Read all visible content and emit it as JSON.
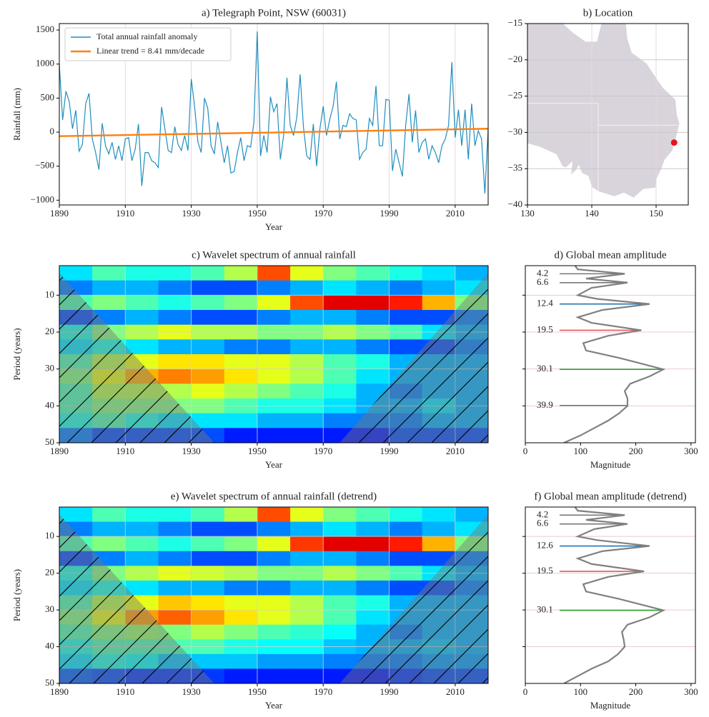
{
  "chart_data": [
    {
      "type": "line",
      "title": "a) Telegraph Point, NSW (60031)",
      "x_label": "Year",
      "y_label": "Rainfall (mm)",
      "x": [
        1890,
        1891,
        1892,
        1893,
        1894,
        1895,
        1896,
        1897,
        1898,
        1899,
        1900,
        1901,
        1902,
        1903,
        1904,
        1905,
        1906,
        1907,
        1908,
        1909,
        1910,
        1911,
        1912,
        1913,
        1914,
        1915,
        1916,
        1917,
        1918,
        1919,
        1920,
        1921,
        1922,
        1923,
        1924,
        1925,
        1926,
        1927,
        1928,
        1929,
        1930,
        1931,
        1932,
        1933,
        1934,
        1935,
        1936,
        1937,
        1938,
        1939,
        1940,
        1941,
        1942,
        1943,
        1944,
        1945,
        1946,
        1947,
        1948,
        1949,
        1950,
        1951,
        1952,
        1953,
        1954,
        1955,
        1956,
        1957,
        1958,
        1959,
        1960,
        1961,
        1962,
        1963,
        1964,
        1965,
        1966,
        1967,
        1968,
        1969,
        1970,
        1971,
        1972,
        1973,
        1974,
        1975,
        1976,
        1977,
        1978,
        1979,
        1980,
        1981,
        1982,
        1983,
        1984,
        1985,
        1986,
        1987,
        1988,
        1989,
        1990,
        1991,
        1992,
        1993,
        1994,
        1995,
        1996,
        1997,
        1998,
        1999,
        2000,
        2001,
        2002,
        2003,
        2004,
        2005,
        2006,
        2007,
        2008,
        2009,
        2010,
        2011,
        2012,
        2013,
        2014,
        2015,
        2016,
        2017,
        2018,
        2019,
        2020
      ],
      "series": [
        {
          "name": "Total annual rainfall anomaly",
          "color": "#1f8ebf",
          "values": [
            1000,
            180,
            600,
            450,
            50,
            320,
            -280,
            -180,
            420,
            570,
            -100,
            -300,
            -550,
            130,
            -200,
            -320,
            -150,
            -400,
            -200,
            -420,
            -100,
            -80,
            -420,
            -250,
            120,
            -790,
            -300,
            -300,
            -420,
            -450,
            -520,
            370,
            50,
            -270,
            -300,
            80,
            -180,
            -270,
            -50,
            -270,
            780,
            380,
            -140,
            -300,
            500,
            350,
            -200,
            -320,
            150,
            -150,
            -450,
            -200,
            -600,
            -580,
            -300,
            -80,
            -420,
            -200,
            -220,
            150,
            1480,
            -350,
            -50,
            -300,
            520,
            300,
            420,
            -400,
            -50,
            800,
            100,
            -50,
            220,
            850,
            80,
            -350,
            -400,
            120,
            -500,
            50,
            380,
            -50,
            190,
            380,
            740,
            -100,
            100,
            80,
            270,
            200,
            180,
            -400,
            -300,
            -250,
            200,
            100,
            680,
            -200,
            -200,
            480,
            470,
            -570,
            -250,
            -450,
            -650,
            100,
            560,
            -150,
            320,
            -300,
            -150,
            -100,
            -400,
            -200,
            -300,
            -450,
            -200,
            -100,
            100,
            1030,
            -80,
            330,
            -200,
            330,
            -400,
            420,
            -200,
            20,
            -100,
            -900,
            50
          ]
        },
        {
          "name": "Linear trend = 8.41 mm/decade",
          "color": "#ff7f0e",
          "x": [
            1890,
            2020
          ],
          "values": [
            -60,
            50
          ]
        }
      ],
      "xlim": [
        1890,
        2020
      ],
      "ylim": [
        -1070,
        1595
      ],
      "xticks": [
        1890,
        1910,
        1930,
        1950,
        1970,
        1990,
        2010
      ],
      "yticks": [
        {
          "value": -1000,
          "label": "−1000"
        },
        {
          "value": -500,
          "label": "−500"
        },
        0,
        500,
        1000,
        1500
      ],
      "grid": "x",
      "legend": "upper left"
    },
    {
      "type": "map",
      "title": "b) Location",
      "points": {
        "x": [
          152.8
        ],
        "y": [
          -31.4
        ]
      },
      "color": "#e8141c",
      "xlim": [
        130,
        155
      ],
      "ylim": [
        -40,
        -15
      ],
      "xticks": [
        130,
        140,
        150
      ],
      "yticks": [
        {
          "value": -15,
          "label": "−15"
        },
        {
          "value": -20,
          "label": "−20"
        },
        {
          "value": -25,
          "label": "−25"
        },
        {
          "value": -30,
          "label": "−30"
        },
        {
          "value": -35,
          "label": "−35"
        },
        {
          "value": -40,
          "label": "−40"
        }
      ],
      "grid": true
    },
    {
      "type": "heatmap",
      "title": "c) Wavelet spectrum of annual rainfall",
      "x_label": "Year",
      "y_label": "Period (years)",
      "x": [
        1895,
        1905,
        1915,
        1925,
        1935,
        1945,
        1955,
        1965,
        1975,
        1985,
        1995,
        2005,
        2015
      ],
      "y": [
        4,
        8,
        12,
        16,
        20,
        24,
        28,
        32,
        36,
        40,
        44,
        48
      ],
      "z": [
        [
          0.35,
          0.45,
          0.4,
          0.4,
          0.45,
          0.55,
          0.8,
          0.6,
          0.5,
          0.45,
          0.4,
          0.35,
          0.3
        ],
        [
          0.25,
          0.3,
          0.3,
          0.25,
          0.2,
          0.2,
          0.25,
          0.3,
          0.35,
          0.3,
          0.25,
          0.3,
          0.35
        ],
        [
          0.45,
          0.5,
          0.45,
          0.4,
          0.45,
          0.5,
          0.6,
          0.8,
          0.9,
          0.9,
          0.85,
          0.7,
          0.5
        ],
        [
          0.2,
          0.25,
          0.3,
          0.25,
          0.2,
          0.2,
          0.25,
          0.3,
          0.3,
          0.25,
          0.2,
          0.2,
          0.25
        ],
        [
          0.4,
          0.5,
          0.55,
          0.6,
          0.55,
          0.55,
          0.5,
          0.5,
          0.55,
          0.5,
          0.45,
          0.35,
          0.3
        ],
        [
          0.35,
          0.4,
          0.35,
          0.3,
          0.3,
          0.25,
          0.25,
          0.3,
          0.3,
          0.25,
          0.2,
          0.2,
          0.25
        ],
        [
          0.45,
          0.55,
          0.6,
          0.65,
          0.65,
          0.6,
          0.6,
          0.55,
          0.45,
          0.4,
          0.3,
          0.3,
          0.3
        ],
        [
          0.5,
          0.6,
          0.7,
          0.75,
          0.72,
          0.65,
          0.6,
          0.55,
          0.45,
          0.35,
          0.3,
          0.3,
          0.3
        ],
        [
          0.45,
          0.55,
          0.55,
          0.55,
          0.6,
          0.55,
          0.5,
          0.45,
          0.4,
          0.3,
          0.25,
          0.3,
          0.3
        ],
        [
          0.45,
          0.5,
          0.5,
          0.5,
          0.5,
          0.45,
          0.4,
          0.4,
          0.35,
          0.3,
          0.3,
          0.35,
          0.3
        ],
        [
          0.4,
          0.45,
          0.4,
          0.35,
          0.35,
          0.35,
          0.3,
          0.3,
          0.25,
          0.25,
          0.25,
          0.3,
          0.3
        ],
        [
          0.25,
          0.2,
          0.2,
          0.2,
          0.2,
          0.15,
          0.15,
          0.15,
          0.15,
          0.15,
          0.2,
          0.2,
          0.2
        ]
      ],
      "colormap": "jet",
      "xlim": [
        1890,
        2020
      ],
      "ylim": [
        2,
        50
      ],
      "y_inverted": true,
      "xticks": [
        1890,
        1910,
        1930,
        1950,
        1970,
        1990,
        2010
      ],
      "yticks": [
        10,
        20,
        30,
        40,
        50
      ],
      "cone_of_influence": {
        "x": [
          1890,
          1937,
          1975,
          2020
        ],
        "y": [
          4,
          50,
          50,
          4
        ]
      },
      "grid": true
    },
    {
      "type": "profile",
      "title": "d) Global mean amplitude",
      "x_label": "Magnitude",
      "y": [
        2,
        3,
        4.2,
        5.5,
        6.6,
        8,
        10,
        11,
        12.4,
        14,
        16,
        17.5,
        19.5,
        21,
        23,
        25,
        27,
        30.1,
        32,
        34,
        36,
        38,
        40,
        42,
        44,
        46,
        48,
        50
      ],
      "values": [
        90,
        95,
        180,
        110,
        185,
        120,
        95,
        130,
        225,
        140,
        95,
        120,
        210,
        150,
        105,
        110,
        170,
        250,
        225,
        190,
        180,
        185,
        185,
        170,
        150,
        125,
        100,
        70
      ],
      "color": "#808080",
      "xlim": [
        0,
        308
      ],
      "ylim": [
        2,
        50
      ],
      "y_inverted": true,
      "xticks": [
        0,
        100,
        200,
        300
      ],
      "yticks": [
        10,
        20,
        30,
        40
      ],
      "peaks": [
        {
          "period": 4.2,
          "magnitude": 180,
          "color": "#777777"
        },
        {
          "period": 6.6,
          "magnitude": 185,
          "color": "#777777"
        },
        {
          "period": 12.4,
          "magnitude": 225,
          "color": "#1f77b4"
        },
        {
          "period": 19.5,
          "magnitude": 210,
          "color": "#e8555f"
        },
        {
          "period": 30.1,
          "magnitude": 250,
          "color": "#2ca02c"
        },
        {
          "period": 39.9,
          "magnitude": 185,
          "color": "#777777"
        }
      ]
    },
    {
      "type": "heatmap",
      "title": "e) Wavelet spectrum of annual rainfall (detrend)",
      "x_label": "Year",
      "y_label": "Period (years)",
      "x": [
        1895,
        1905,
        1915,
        1925,
        1935,
        1945,
        1955,
        1965,
        1975,
        1985,
        1995,
        2005,
        2015
      ],
      "y": [
        4,
        8,
        12,
        16,
        20,
        24,
        28,
        32,
        36,
        40,
        44,
        48
      ],
      "z": [
        [
          0.35,
          0.45,
          0.4,
          0.4,
          0.45,
          0.55,
          0.8,
          0.6,
          0.5,
          0.45,
          0.4,
          0.35,
          0.3
        ],
        [
          0.25,
          0.3,
          0.3,
          0.25,
          0.2,
          0.2,
          0.25,
          0.3,
          0.35,
          0.3,
          0.25,
          0.3,
          0.35
        ],
        [
          0.45,
          0.5,
          0.45,
          0.4,
          0.45,
          0.5,
          0.6,
          0.82,
          0.9,
          0.9,
          0.85,
          0.7,
          0.5
        ],
        [
          0.2,
          0.25,
          0.3,
          0.25,
          0.2,
          0.2,
          0.25,
          0.3,
          0.3,
          0.25,
          0.2,
          0.2,
          0.25
        ],
        [
          0.4,
          0.5,
          0.55,
          0.6,
          0.58,
          0.55,
          0.5,
          0.5,
          0.55,
          0.5,
          0.45,
          0.35,
          0.3
        ],
        [
          0.35,
          0.4,
          0.35,
          0.3,
          0.3,
          0.25,
          0.25,
          0.3,
          0.3,
          0.25,
          0.2,
          0.2,
          0.25
        ],
        [
          0.45,
          0.55,
          0.6,
          0.68,
          0.65,
          0.6,
          0.6,
          0.55,
          0.45,
          0.4,
          0.3,
          0.3,
          0.3
        ],
        [
          0.5,
          0.6,
          0.72,
          0.78,
          0.72,
          0.65,
          0.6,
          0.55,
          0.45,
          0.35,
          0.3,
          0.3,
          0.3
        ],
        [
          0.45,
          0.5,
          0.52,
          0.5,
          0.55,
          0.5,
          0.45,
          0.42,
          0.38,
          0.3,
          0.25,
          0.3,
          0.3
        ],
        [
          0.4,
          0.45,
          0.45,
          0.45,
          0.45,
          0.4,
          0.38,
          0.38,
          0.32,
          0.3,
          0.3,
          0.32,
          0.3
        ],
        [
          0.35,
          0.4,
          0.38,
          0.32,
          0.32,
          0.32,
          0.28,
          0.28,
          0.25,
          0.25,
          0.25,
          0.28,
          0.28
        ],
        [
          0.22,
          0.2,
          0.18,
          0.18,
          0.18,
          0.15,
          0.15,
          0.15,
          0.15,
          0.15,
          0.18,
          0.2,
          0.2
        ]
      ],
      "colormap": "jet",
      "xlim": [
        1890,
        2020
      ],
      "ylim": [
        2,
        50
      ],
      "y_inverted": true,
      "xticks": [
        1890,
        1910,
        1930,
        1950,
        1970,
        1990,
        2010
      ],
      "yticks": [
        10,
        20,
        30,
        40,
        50
      ],
      "cone_of_influence": {
        "x": [
          1890,
          1937,
          1975,
          2020
        ],
        "y": [
          4,
          50,
          50,
          4
        ]
      },
      "grid": true
    },
    {
      "type": "profile",
      "title": "f) Global mean amplitude (detrend)",
      "x_label": "Magnitude",
      "y": [
        2,
        3,
        4.2,
        5.5,
        6.6,
        8,
        10,
        11,
        12.6,
        14,
        16,
        17.5,
        19.5,
        21,
        23,
        25,
        27,
        30.1,
        32,
        34,
        36,
        38,
        40,
        42,
        44,
        46,
        48,
        50
      ],
      "values": [
        90,
        95,
        180,
        110,
        185,
        125,
        95,
        130,
        225,
        140,
        95,
        120,
        215,
        150,
        105,
        110,
        170,
        250,
        225,
        185,
        175,
        178,
        180,
        168,
        150,
        120,
        95,
        70
      ],
      "color": "#808080",
      "xlim": [
        0,
        308
      ],
      "ylim": [
        2,
        50
      ],
      "y_inverted": true,
      "xticks": [
        0,
        100,
        200,
        300
      ],
      "yticks": [
        10,
        20,
        30,
        40
      ],
      "peaks": [
        {
          "period": 4.2,
          "magnitude": 180,
          "color": "#777777"
        },
        {
          "period": 6.6,
          "magnitude": 185,
          "color": "#777777"
        },
        {
          "period": 12.6,
          "magnitude": 225,
          "color": "#1f77b4"
        },
        {
          "period": 19.5,
          "magnitude": 215,
          "color": "#e8555f"
        },
        {
          "period": 30.1,
          "magnitude": 250,
          "color": "#2ca02c"
        }
      ]
    }
  ]
}
